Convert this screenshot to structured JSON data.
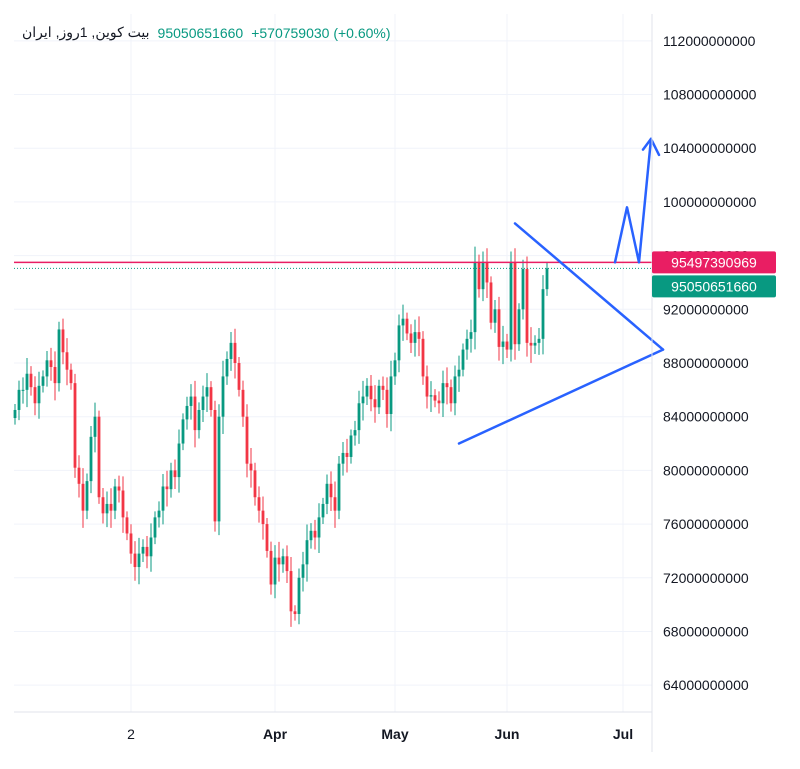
{
  "legend": {
    "symbol": "بيت كوين, 1روز, ایران",
    "price": "95050651660",
    "change": "+570759030 (+0.60%)"
  },
  "colors": {
    "up": "#089981",
    "down": "#F23645",
    "drawing": "#2962FF",
    "level_line": "#E91E63",
    "grid": "#F0F3FA",
    "axis_text": "#131722"
  },
  "chart_data": {
    "type": "candlestick",
    "y_axis": {
      "min": 62000000000,
      "max": 114000000000,
      "ticks": [
        64000000000,
        68000000000,
        72000000000,
        76000000000,
        80000000000,
        84000000000,
        88000000000,
        92000000000,
        96000000000,
        100000000000,
        104000000000,
        108000000000,
        112000000000
      ],
      "tick_labels": [
        "64000000000",
        "68000000000",
        "72000000000",
        "76000000000",
        "80000000000",
        "84000000000",
        "88000000000",
        "92000000000",
        "96000000000",
        "100000000000",
        "104000000000",
        "108000000000",
        "112000000000"
      ]
    },
    "x_axis": {
      "tick_labels": [
        "2",
        "Apr",
        "May",
        "Jun",
        "Jul"
      ],
      "tick_candle_index": [
        29,
        65,
        95,
        123,
        152
      ]
    },
    "price_labels": [
      {
        "value": 95497390969,
        "label": "95497390969",
        "color": "#E91E63"
      },
      {
        "value": 95050651660,
        "label": "95050651660",
        "color": "#089981"
      }
    ],
    "horizontal_line": {
      "value": 95497390969
    },
    "close_values": [
      84.5,
      86.0,
      86.0,
      87.2,
      86.2,
      85.0,
      86.3,
      87.0,
      88.2,
      87.7,
      86.5,
      90.5,
      88.8,
      87.5,
      86.5,
      80.2,
      79.0,
      77.0,
      79.2,
      82.5,
      84.0,
      78.0,
      76.8,
      77.5,
      77.0,
      78.8,
      78.5,
      76.5,
      75.3,
      73.8,
      72.8,
      73.8,
      74.3,
      73.6,
      75.0,
      76.5,
      77.0,
      78.8,
      78.6,
      80.0,
      79.5,
      82.0,
      83.8,
      84.8,
      85.5,
      83.0,
      84.5,
      85.5,
      86.2,
      84.5,
      76.2,
      84.0,
      87.0,
      88.3,
      89.5,
      88.0,
      86.0,
      84.0,
      80.5,
      80.0,
      78.0,
      77.0,
      76.0,
      74.0,
      71.5,
      73.5,
      73.0,
      73.6,
      72.5,
      69.5,
      69.3,
      72.0,
      73.0,
      74.8,
      75.5,
      75.0,
      76.5,
      77.5,
      79.0,
      78.0,
      77.0,
      80.5,
      81.3,
      81.0,
      82.6,
      83.0,
      85.0,
      85.5,
      86.3,
      85.3,
      84.7,
      86.3,
      86.0,
      84.2,
      87.0,
      88.2,
      90.8,
      91.3,
      90.2,
      89.5,
      90.3,
      89.8,
      87.0,
      85.5,
      85.6,
      85.2,
      85.0,
      86.5,
      86.2,
      85.0,
      87.0,
      87.5,
      89.0,
      89.8,
      90.3,
      95.5,
      93.5,
      95.5,
      94.0,
      91.0,
      92.0,
      89.2,
      89.6,
      89.0,
      95.5,
      89.4,
      92.0,
      95.0,
      89.5,
      89.3,
      89.5,
      89.8,
      93.5,
      95.05
    ],
    "drawings": [
      {
        "type": "trendline",
        "points": [
          [
            125,
            98.4
          ],
          [
            162,
            89.0
          ]
        ]
      },
      {
        "type": "trendline",
        "points": [
          [
            111,
            82.0
          ],
          [
            162,
            89.0
          ]
        ]
      },
      {
        "type": "path",
        "points": [
          [
            150,
            95.5
          ],
          [
            153,
            99.6
          ],
          [
            156,
            95.5
          ],
          [
            159,
            104.7
          ]
        ]
      },
      {
        "type": "arrowhead",
        "points": [
          [
            157,
            103.9
          ],
          [
            159,
            104.7
          ],
          [
            161,
            103.5
          ]
        ]
      }
    ]
  }
}
